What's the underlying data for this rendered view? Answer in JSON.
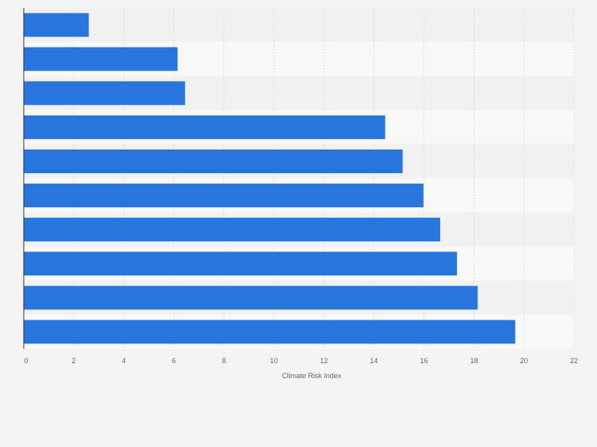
{
  "chart_data": {
    "type": "bar",
    "orientation": "horizontal",
    "categories": [
      "",
      "",
      "",
      "",
      "",
      "",
      "",
      "",
      "",
      ""
    ],
    "values": [
      2.6,
      6.15,
      6.45,
      14.45,
      15.15,
      15.98,
      16.65,
      17.32,
      18.15,
      19.65
    ],
    "xlabel": "Climate Risk Index",
    "ylabel": "",
    "xlim": [
      0,
      22
    ],
    "xticks": [
      0,
      2,
      4,
      6,
      8,
      10,
      12,
      14,
      16,
      18,
      20,
      22
    ],
    "grid": true,
    "legend": "none",
    "colors": {
      "bar": "#2876dd",
      "background": "#f4f4f4",
      "band_light": "#f8f8f8",
      "band_dark": "#f1f1f1",
      "grid": "#dedede",
      "axis": "#333333",
      "tick_text": "#666666"
    }
  }
}
